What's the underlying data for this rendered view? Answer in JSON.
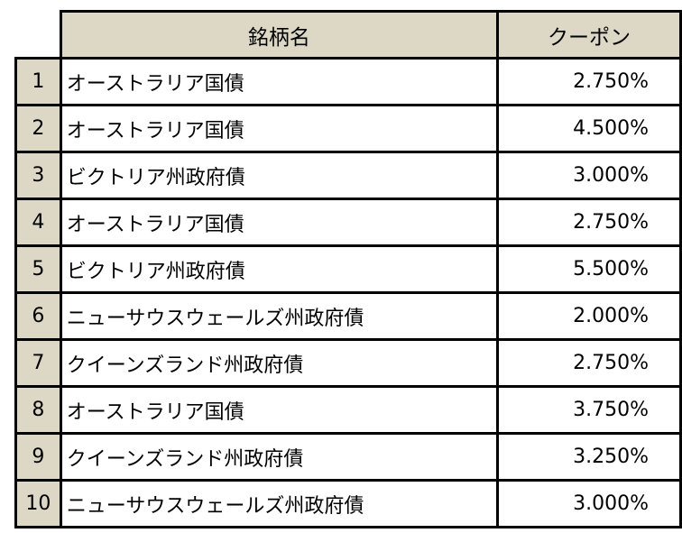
{
  "header": {
    "name": "銘柄名",
    "coupon": "クーポン"
  },
  "rows": [
    {
      "no": "1",
      "name": "オーストラリア国債",
      "coupon": "2.750%"
    },
    {
      "no": "2",
      "name": "オーストラリア国債",
      "coupon": "4.500%"
    },
    {
      "no": "3",
      "name": "ビクトリア州政府債",
      "coupon": "3.000%"
    },
    {
      "no": "4",
      "name": "オーストラリア国債",
      "coupon": "2.750%"
    },
    {
      "no": "5",
      "name": "ビクトリア州政府債",
      "coupon": "5.500%"
    },
    {
      "no": "6",
      "name": "ニューサウスウェールズ州政府債",
      "coupon": "2.000%"
    },
    {
      "no": "7",
      "name": "クイーンズランド州政府債",
      "coupon": "2.750%"
    },
    {
      "no": "8",
      "name": "オーストラリア国債",
      "coupon": "3.750%"
    },
    {
      "no": "9",
      "name": "クイーンズランド州政府債",
      "coupon": "3.250%"
    },
    {
      "no": "10",
      "name": "ニューサウスウェールズ州政府債",
      "coupon": "3.000%"
    }
  ]
}
